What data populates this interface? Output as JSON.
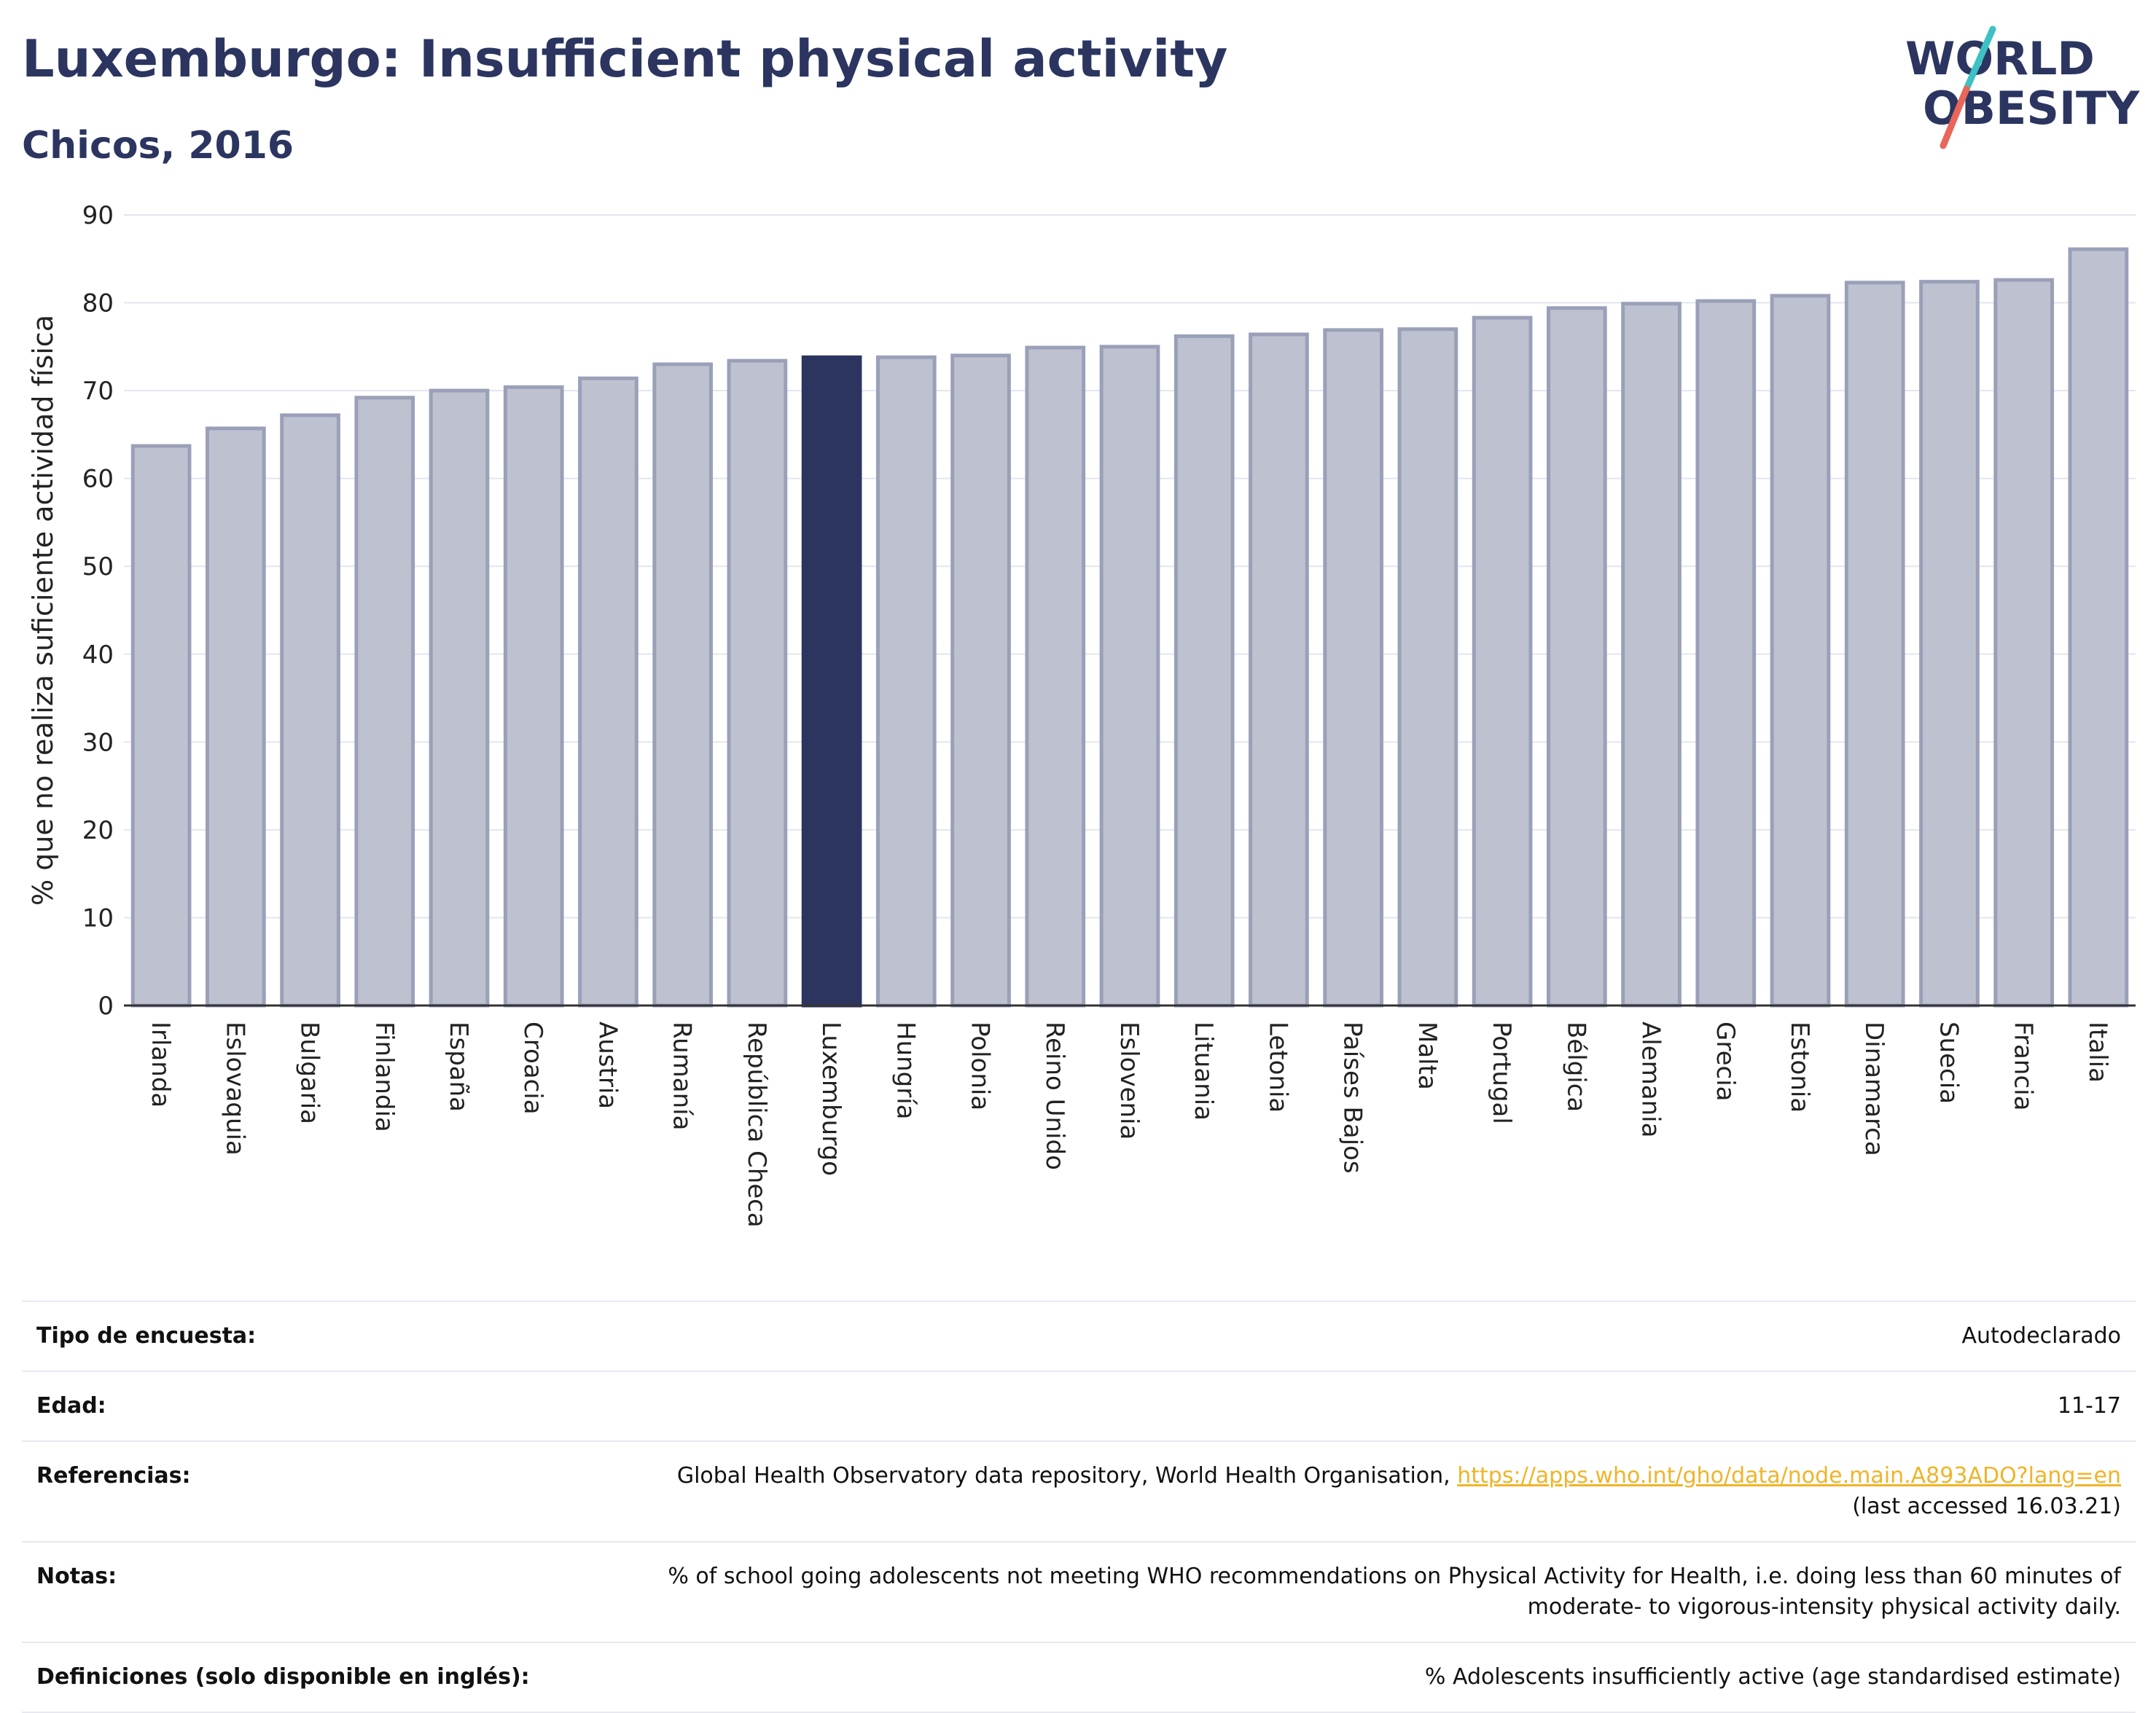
{
  "header": {
    "title": "Luxemburgo: Insufficient physical activity",
    "subtitle": "Chicos, 2016"
  },
  "logo": {
    "line1": "WORLD",
    "line2": "OBESITY",
    "colors": {
      "text": "#2b3560",
      "slash_top": "#3ec1c4",
      "slash_bottom": "#e8665a"
    }
  },
  "colors": {
    "bar_default": "#bec2d0",
    "bar_stroke": "#9aa0b8",
    "bar_highlight": "#2b3560",
    "grid": "#e3e6ee",
    "axis": "#333333",
    "text": "#2b3560",
    "link": "#f0b429"
  },
  "chart_data": {
    "type": "bar",
    "title": "",
    "xlabel": "",
    "ylabel": "% que no realiza suficiente actividad física",
    "ylim": [
      0,
      90
    ],
    "yticks": [
      0,
      10,
      20,
      30,
      40,
      50,
      60,
      70,
      80,
      90
    ],
    "grid": true,
    "legend": "none",
    "highlight": "Luxemburgo",
    "categories": [
      "Irlanda",
      "Eslovaquia",
      "Bulgaria",
      "Finlandia",
      "España",
      "Croacia",
      "Austria",
      "Rumanía",
      "República Checa",
      "Luxemburgo",
      "Hungría",
      "Polonia",
      "Reino Unido",
      "Eslovenia",
      "Lituania",
      "Letonia",
      "Países Bajos",
      "Malta",
      "Portugal",
      "Bélgica",
      "Alemania",
      "Grecia",
      "Estonia",
      "Dinamarca",
      "Suecia",
      "Francia",
      "Italia"
    ],
    "values": [
      63.7,
      65.7,
      67.2,
      69.2,
      70.0,
      70.4,
      71.4,
      73.0,
      73.4,
      73.8,
      73.8,
      74.0,
      74.9,
      75.0,
      76.2,
      76.4,
      76.9,
      77.0,
      78.3,
      79.4,
      79.9,
      80.2,
      80.8,
      82.3,
      82.4,
      82.6,
      86.1
    ]
  },
  "info": {
    "rows": [
      {
        "label": "Tipo de encuesta:",
        "value": "Autodeclarado"
      },
      {
        "label": "Edad:",
        "value": "11-17"
      },
      {
        "label": "Referencias:",
        "value": "Global Health Observatory data repository, World Health Organisation,",
        "link": "https://apps.who.int/gho/data/node.main.A893ADO?lang=en",
        "note": "(last accessed 16.03.21)"
      },
      {
        "label": "Notas:",
        "value": "% of school going adolescents not meeting WHO recommendations on Physical Activity for Health, i.e. doing less than 60 minutes of moderate- to vigorous-intensity physical activity daily."
      },
      {
        "label": "Definiciones (solo disponible en inglés):",
        "value": "% Adolescents insufficiently active (age standardised estimate)"
      }
    ]
  }
}
